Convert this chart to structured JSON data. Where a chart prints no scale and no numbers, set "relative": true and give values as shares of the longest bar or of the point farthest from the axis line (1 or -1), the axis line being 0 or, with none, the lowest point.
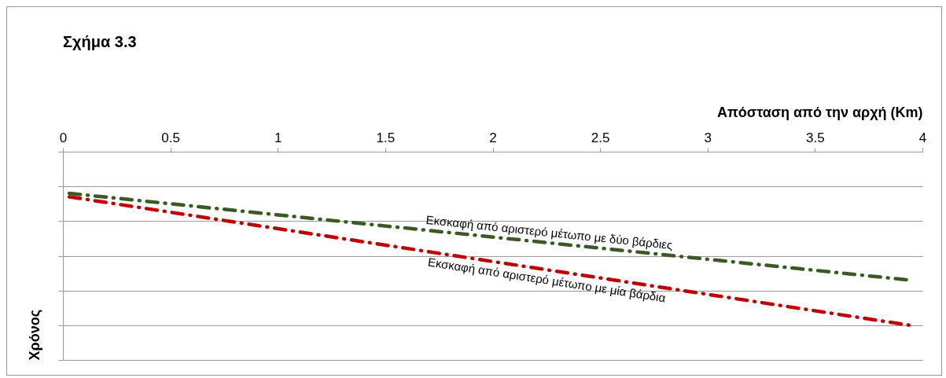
{
  "chart_data": {
    "type": "line",
    "title": "Σχήμα 3.3",
    "xlabel": "Απόσταση από την αρχή (Km)",
    "ylabel": "Χρόνος",
    "x": [
      0.03,
      3.94
    ],
    "xlim": [
      0,
      4
    ],
    "xticks": [
      0,
      0.5,
      1,
      1.5,
      2,
      2.5,
      3,
      3.5,
      4
    ],
    "relative": true,
    "grid": "y",
    "legend": false,
    "line_style": "dashed",
    "marker": "none",
    "series": [
      {
        "name": "Εκσκαφή από αριστερό μέτωπο με δύο βάρδιες",
        "color": "#3a5a24",
        "values": [
          -0.24,
          -0.74
        ]
      },
      {
        "name": "Εκσκαφή από αριστερό μέτωπο με μία βάρδια",
        "color": "#c00000",
        "values": [
          -0.26,
          -1
        ]
      }
    ]
  }
}
